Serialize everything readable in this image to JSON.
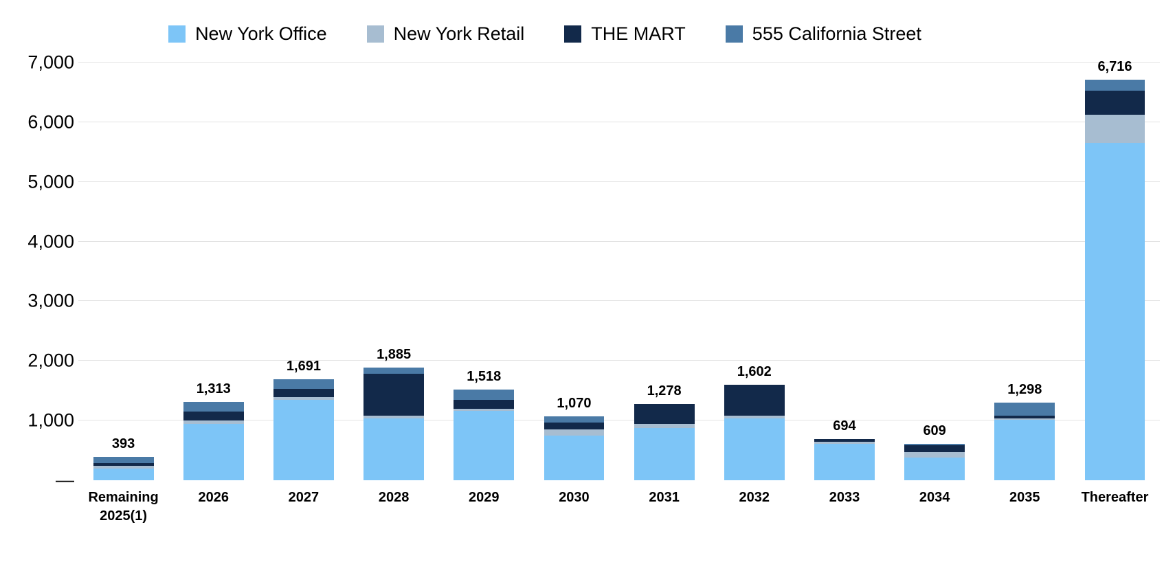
{
  "chart_data": {
    "type": "bar",
    "stacked": true,
    "title": "",
    "xlabel": "",
    "ylabel": "",
    "grid": true,
    "legend_position": "top",
    "ylim": [
      0,
      7000
    ],
    "yticks": [
      0,
      1000,
      2000,
      3000,
      4000,
      5000,
      6000,
      7000
    ],
    "ytick_labels": [
      "—",
      "1,000",
      "2,000",
      "3,000",
      "4,000",
      "5,000",
      "6,000",
      "7,000"
    ],
    "categories": [
      "Remaining\n2025(1)",
      "2026",
      "2027",
      "2028",
      "2029",
      "2030",
      "2031",
      "2032",
      "2033",
      "2034",
      "2035",
      "Thereafter"
    ],
    "series": [
      {
        "name": "New York Office",
        "color": "#7dc5f7",
        "values": [
          200,
          950,
          1350,
          1040,
          1160,
          750,
          880,
          1040,
          615,
          380,
          1010,
          5650
        ]
      },
      {
        "name": "New York Retail",
        "color": "#a7bdd1",
        "values": [
          40,
          50,
          40,
          40,
          40,
          100,
          60,
          40,
          25,
          90,
          30,
          480
        ]
      },
      {
        "name": "THE MART",
        "color": "#12294a",
        "values": [
          53,
          150,
          141,
          705,
          150,
          120,
          338,
          522,
          54,
          120,
          40,
          396
        ]
      },
      {
        "name": "555 California Street",
        "color": "#4a7aa6",
        "values": [
          100,
          163,
          160,
          100,
          168,
          100,
          0,
          0,
          0,
          19,
          218,
          190
        ]
      }
    ],
    "totals": [
      393,
      1313,
      1691,
      1885,
      1518,
      1070,
      1278,
      1602,
      694,
      609,
      1298,
      6716
    ],
    "total_labels": [
      "393",
      "1,313",
      "1,691",
      "1,885",
      "1,518",
      "1,070",
      "1,278",
      "1,602",
      "694",
      "609",
      "1,298",
      "6,716"
    ]
  }
}
